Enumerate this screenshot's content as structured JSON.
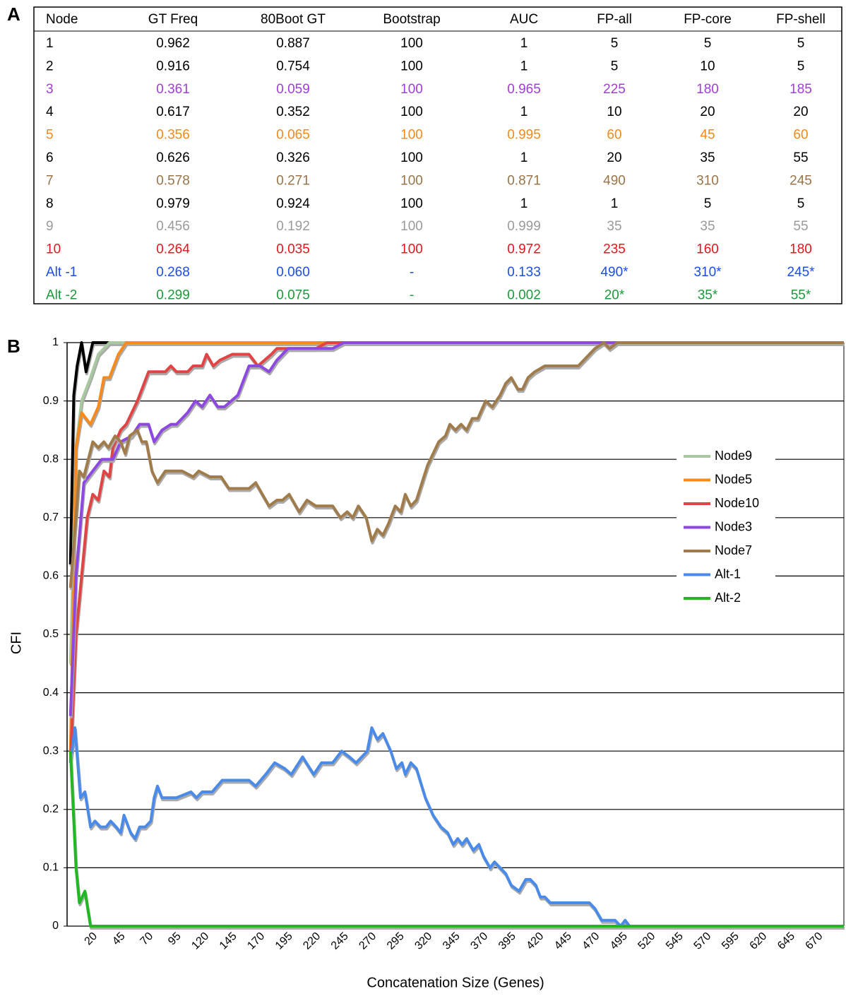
{
  "panels": [
    "A",
    "B"
  ],
  "table": {
    "header": [
      "Node",
      "GT Freq",
      "80Boot GT",
      "Bootstrap",
      "AUC",
      "FP-all",
      "FP-core",
      "FP-shell"
    ],
    "rows": [
      {
        "color": "#000000",
        "cells": [
          "1",
          "0.962",
          "0.887",
          "100",
          "1",
          "5",
          "5",
          "5"
        ]
      },
      {
        "color": "#000000",
        "cells": [
          "2",
          "0.916",
          "0.754",
          "100",
          "1",
          "5",
          "10",
          "5"
        ]
      },
      {
        "color": "#a23cd8",
        "cells": [
          "3",
          "0.361",
          "0.059",
          "100",
          "0.965",
          "225",
          "180",
          "185"
        ]
      },
      {
        "color": "#000000",
        "cells": [
          "4",
          "0.617",
          "0.352",
          "100",
          "1",
          "10",
          "20",
          "20"
        ]
      },
      {
        "color": "#f08a1c",
        "cells": [
          "5",
          "0.356",
          "0.065",
          "100",
          "0.995",
          "60",
          "45",
          "60"
        ]
      },
      {
        "color": "#000000",
        "cells": [
          "6",
          "0.626",
          "0.326",
          "100",
          "1",
          "20",
          "35",
          "55"
        ]
      },
      {
        "color": "#9a7448",
        "cells": [
          "7",
          "0.578",
          "0.271",
          "100",
          "0.871",
          "490",
          "310",
          "245"
        ]
      },
      {
        "color": "#000000",
        "cells": [
          "8",
          "0.979",
          "0.924",
          "100",
          "1",
          "1",
          "5",
          "5"
        ]
      },
      {
        "color": "#9a9a9a",
        "cells": [
          "9",
          "0.456",
          "0.192",
          "100",
          "0.999",
          "35",
          "35",
          "55"
        ]
      },
      {
        "color": "#e8141c",
        "cells": [
          "10",
          "0.264",
          "0.035",
          "100",
          "0.972",
          "235",
          "160",
          "180"
        ]
      },
      {
        "color": "#1a4ee6",
        "cells": [
          "Alt -1",
          "0.268",
          "0.060",
          "-",
          "0.133",
          "490*",
          "310*",
          "245*"
        ]
      },
      {
        "color": "#1c9a3a",
        "cells": [
          "Alt -2",
          "0.299",
          "0.075",
          "-",
          "0.002",
          "20*",
          "35*",
          "55*"
        ]
      }
    ]
  },
  "chart_data": {
    "type": "line",
    "x_label": "Concatenation Size (Genes)",
    "y_label": "CFI",
    "xlim": [
      -3,
      693
    ],
    "ylim": [
      0,
      1
    ],
    "xticks": [
      20,
      45,
      70,
      95,
      120,
      145,
      170,
      195,
      220,
      245,
      270,
      295,
      320,
      345,
      370,
      395,
      420,
      445,
      470,
      495,
      520,
      545,
      570,
      595,
      620,
      645,
      670
    ],
    "yticks": [
      0,
      0.1,
      0.2,
      0.3,
      0.4,
      0.5,
      0.6,
      0.7,
      0.8,
      0.9,
      1
    ],
    "grid": true,
    "legend": "right",
    "series": [
      {
        "name": null,
        "color": "#000000",
        "x": [
          0,
          3,
          6,
          10,
          14,
          20,
          693
        ],
        "values": [
          0.62,
          0.91,
          0.96,
          1,
          0.95,
          1,
          1
        ]
      },
      {
        "name": "Node9",
        "color": "#a8c8a0",
        "x": [
          0,
          5,
          10,
          18,
          25,
          35,
          693
        ],
        "values": [
          0.45,
          0.82,
          0.9,
          0.94,
          0.98,
          1,
          1
        ]
      },
      {
        "name": "Node5",
        "color": "#f58a1f",
        "x": [
          0,
          5,
          10,
          18,
          25,
          30,
          35,
          43,
          50,
          693
        ],
        "values": [
          0.3,
          0.82,
          0.88,
          0.86,
          0.89,
          0.94,
          0.94,
          0.98,
          1,
          1
        ]
      },
      {
        "name": "Node10",
        "color": "#e04444",
        "x": [
          0,
          5,
          10,
          15,
          20,
          25,
          30,
          35,
          38,
          45,
          50,
          55,
          60,
          70,
          85,
          90,
          95,
          105,
          110,
          118,
          122,
          128,
          134,
          145,
          160,
          168,
          180,
          185,
          220,
          230,
          693
        ],
        "values": [
          0.28,
          0.5,
          0.6,
          0.7,
          0.74,
          0.73,
          0.78,
          0.77,
          0.82,
          0.85,
          0.86,
          0.88,
          0.9,
          0.95,
          0.95,
          0.96,
          0.95,
          0.95,
          0.96,
          0.96,
          0.98,
          0.96,
          0.97,
          0.98,
          0.98,
          0.96,
          0.98,
          0.99,
          0.99,
          1,
          1
        ]
      },
      {
        "name": "Node3",
        "color": "#8c48e0",
        "x": [
          0,
          5,
          12,
          20,
          28,
          38,
          45,
          55,
          62,
          70,
          75,
          82,
          90,
          95,
          105,
          112,
          118,
          125,
          132,
          138,
          150,
          160,
          170,
          178,
          185,
          195,
          235,
          245,
          693
        ],
        "values": [
          0.36,
          0.6,
          0.76,
          0.78,
          0.8,
          0.8,
          0.83,
          0.84,
          0.86,
          0.86,
          0.83,
          0.85,
          0.86,
          0.86,
          0.88,
          0.9,
          0.89,
          0.91,
          0.89,
          0.89,
          0.91,
          0.96,
          0.96,
          0.95,
          0.97,
          0.99,
          0.99,
          1,
          1
        ]
      },
      {
        "name": "Node7",
        "color": "#a07c4c",
        "x": [
          0,
          5,
          8,
          12,
          16,
          20,
          25,
          30,
          34,
          40,
          45,
          49,
          53,
          60,
          64,
          68,
          73,
          78,
          85,
          100,
          110,
          115,
          125,
          135,
          142,
          160,
          166,
          172,
          178,
          185,
          190,
          196,
          205,
          212,
          220,
          235,
          242,
          248,
          253,
          258,
          265,
          270,
          275,
          280,
          285,
          291,
          296,
          300,
          305,
          310,
          320,
          330,
          336,
          340,
          345,
          350,
          355,
          360,
          365,
          372,
          378,
          385,
          390,
          395,
          401,
          405,
          410,
          416,
          425,
          455,
          465,
          470,
          478,
          483,
          490,
          693
        ],
        "values": [
          0.58,
          0.7,
          0.78,
          0.77,
          0.8,
          0.83,
          0.82,
          0.83,
          0.82,
          0.84,
          0.83,
          0.81,
          0.84,
          0.85,
          0.83,
          0.83,
          0.78,
          0.76,
          0.78,
          0.78,
          0.77,
          0.78,
          0.77,
          0.77,
          0.75,
          0.75,
          0.76,
          0.74,
          0.72,
          0.73,
          0.73,
          0.74,
          0.71,
          0.73,
          0.72,
          0.72,
          0.7,
          0.71,
          0.7,
          0.72,
          0.7,
          0.66,
          0.68,
          0.67,
          0.69,
          0.72,
          0.71,
          0.74,
          0.72,
          0.73,
          0.79,
          0.83,
          0.84,
          0.86,
          0.85,
          0.86,
          0.85,
          0.87,
          0.87,
          0.9,
          0.89,
          0.91,
          0.93,
          0.94,
          0.92,
          0.92,
          0.94,
          0.95,
          0.96,
          0.96,
          0.98,
          0.99,
          1,
          0.99,
          1,
          1
        ]
      },
      {
        "name": "Alt-1",
        "color": "#4a8ae8",
        "x": [
          0,
          4,
          9,
          13,
          18,
          22,
          27,
          32,
          36,
          41,
          45,
          48,
          54,
          58,
          62,
          67,
          72,
          75,
          78,
          82,
          95,
          108,
          113,
          118,
          127,
          136,
          160,
          166,
          175,
          183,
          192,
          198,
          208,
          218,
          225,
          235,
          243,
          250,
          256,
          266,
          270,
          275,
          280,
          287,
          292,
          297,
          300,
          305,
          310,
          318,
          325,
          332,
          338,
          343,
          347,
          351,
          355,
          361,
          366,
          370,
          376,
          380,
          385,
          390,
          395,
          402,
          408,
          412,
          417,
          421,
          425,
          430,
          465,
          470,
          476,
          488,
          493,
          497,
          501,
          693
        ],
        "values": [
          0.28,
          0.34,
          0.22,
          0.23,
          0.17,
          0.18,
          0.17,
          0.17,
          0.18,
          0.17,
          0.16,
          0.19,
          0.16,
          0.15,
          0.17,
          0.17,
          0.18,
          0.22,
          0.24,
          0.22,
          0.22,
          0.23,
          0.22,
          0.23,
          0.23,
          0.25,
          0.25,
          0.24,
          0.26,
          0.28,
          0.27,
          0.26,
          0.29,
          0.26,
          0.28,
          0.28,
          0.3,
          0.29,
          0.28,
          0.3,
          0.34,
          0.32,
          0.33,
          0.3,
          0.27,
          0.28,
          0.26,
          0.28,
          0.27,
          0.22,
          0.19,
          0.17,
          0.16,
          0.14,
          0.15,
          0.14,
          0.15,
          0.13,
          0.14,
          0.12,
          0.1,
          0.11,
          0.1,
          0.09,
          0.07,
          0.06,
          0.08,
          0.08,
          0.07,
          0.05,
          0.05,
          0.04,
          0.04,
          0.03,
          0.01,
          0.01,
          0,
          0.01,
          0,
          0
        ]
      },
      {
        "name": "Alt-2",
        "color": "#22b822",
        "x": [
          0,
          5,
          8,
          13,
          18,
          693
        ],
        "values": [
          0.3,
          0.1,
          0.04,
          0.06,
          0,
          0
        ]
      }
    ]
  }
}
